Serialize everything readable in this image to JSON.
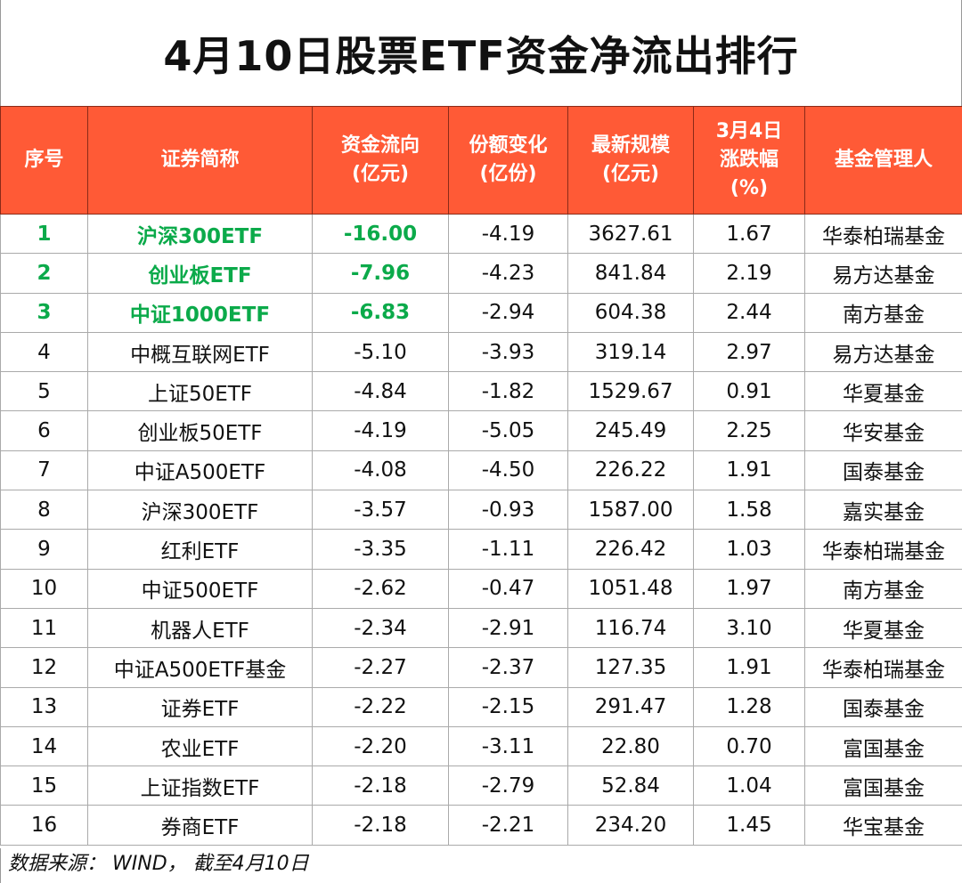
{
  "title": "4月10日股票ETF资金净流出排行",
  "colors": {
    "header_bg": "#FF5A36",
    "highlight_text": "#0BAA4A"
  },
  "columns": [
    [
      "序号"
    ],
    [
      "证券简称"
    ],
    [
      "资金流向",
      "(亿元)"
    ],
    [
      "份额变化",
      "(亿份)"
    ],
    [
      "最新规模",
      "(亿元)"
    ],
    [
      "3月4日",
      "涨跌幅",
      "(%)"
    ],
    [
      "基金管理人"
    ]
  ],
  "rows": [
    [
      "1",
      "沪深300ETF",
      "-16.00",
      "-4.19",
      "3627.61",
      "1.67",
      "华泰柏瑞基金"
    ],
    [
      "2",
      "创业板ETF",
      "-7.96",
      "-4.23",
      "841.84",
      "2.19",
      "易方达基金"
    ],
    [
      "3",
      "中证1000ETF",
      "-6.83",
      "-2.94",
      "604.38",
      "2.44",
      "南方基金"
    ],
    [
      "4",
      "中概互联网ETF",
      "-5.10",
      "-3.93",
      "319.14",
      "2.97",
      "易方达基金"
    ],
    [
      "5",
      "上证50ETF",
      "-4.84",
      "-1.82",
      "1529.67",
      "0.91",
      "华夏基金"
    ],
    [
      "6",
      "创业板50ETF",
      "-4.19",
      "-5.05",
      "245.49",
      "2.25",
      "华安基金"
    ],
    [
      "7",
      "中证A500ETF",
      "-4.08",
      "-4.50",
      "226.22",
      "1.91",
      "国泰基金"
    ],
    [
      "8",
      "沪深300ETF",
      "-3.57",
      "-0.93",
      "1587.00",
      "1.58",
      "嘉实基金"
    ],
    [
      "9",
      "红利ETF",
      "-3.35",
      "-1.11",
      "226.42",
      "1.03",
      "华泰柏瑞基金"
    ],
    [
      "10",
      "中证500ETF",
      "-2.62",
      "-0.47",
      "1051.48",
      "1.97",
      "南方基金"
    ],
    [
      "11",
      "机器人ETF",
      "-2.34",
      "-2.91",
      "116.74",
      "3.10",
      "华夏基金"
    ],
    [
      "12",
      "中证A500ETF基金",
      "-2.27",
      "-2.37",
      "127.35",
      "1.91",
      "华泰柏瑞基金"
    ],
    [
      "13",
      "证券ETF",
      "-2.22",
      "-2.15",
      "291.47",
      "1.28",
      "国泰基金"
    ],
    [
      "14",
      "农业ETF",
      "-2.20",
      "-3.11",
      "22.80",
      "0.70",
      "富国基金"
    ],
    [
      "15",
      "上证指数ETF",
      "-2.18",
      "-2.79",
      "52.84",
      "1.04",
      "富国基金"
    ],
    [
      "16",
      "券商ETF",
      "-2.18",
      "-2.21",
      "234.20",
      "1.45",
      "华宝基金"
    ]
  ],
  "highlight_top": 3,
  "footer": "数据来源： WIND， 截至4月10日"
}
